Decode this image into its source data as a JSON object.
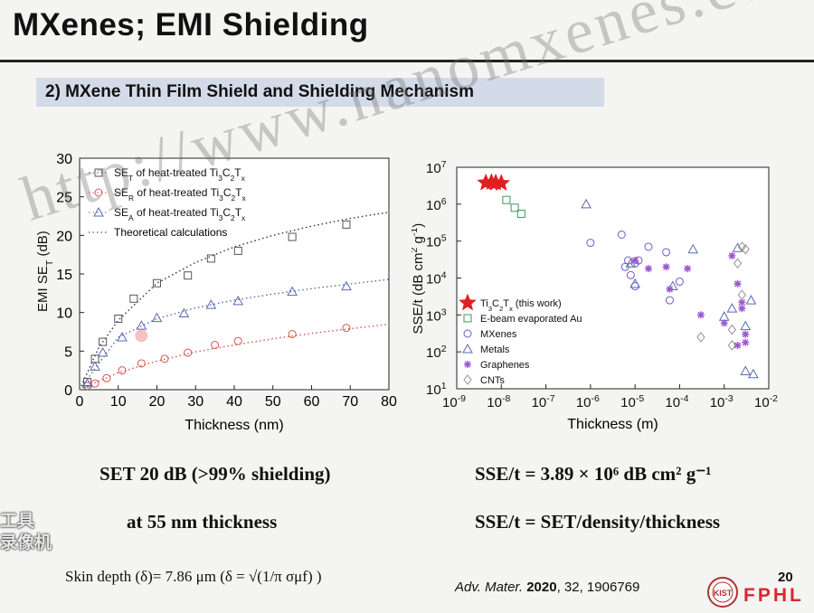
{
  "header": {
    "title": "MXenes; EMI Shielding",
    "subtitle": "2) MXene Thin Film Shield and Shielding Mechanism"
  },
  "watermark": "http://www.nanomxenes.com",
  "recorder_overlay": [
    "工具",
    "录像机"
  ],
  "statements": {
    "left_1": "SET 20 dB (>99% shielding)",
    "left_2": "at 55 nm thickness",
    "right_1": "SSE/t = 3.89 × 10⁶ dB cm² g⁻¹",
    "right_2": "SSE/t = SET/density/thickness",
    "skin_depth": "Skin depth (δ)= 7.86 μm  (δ = √(1/π σμf) )"
  },
  "footer": {
    "citation_journal": "Adv. Mater.",
    "citation_year": "2020",
    "citation_rest": ", 32, 1906769",
    "page_number": "20",
    "logo_text": "FPHL",
    "seal_text": "KIST"
  },
  "chart_data": [
    {
      "type": "scatter",
      "xlabel": "Thickness (nm)",
      "ylabel": "EMI SET (dB)",
      "xlim": [
        0,
        80
      ],
      "ylim": [
        0,
        30
      ],
      "xticks": [
        "0",
        "10",
        "20",
        "30",
        "40",
        "50",
        "60",
        "70",
        "80"
      ],
      "yticks": [
        "0",
        "5",
        "10",
        "15",
        "20",
        "25",
        "30"
      ],
      "legend_position": "top-left",
      "series": [
        {
          "name": "SET of heat-treated Ti3C2Tx",
          "marker": "square",
          "color": "#555555",
          "x": [
            2,
            4,
            6,
            10,
            14,
            20,
            28,
            34,
            41,
            55,
            69
          ],
          "y": [
            1,
            4,
            6.2,
            9.2,
            11.8,
            13.8,
            14.8,
            17,
            18,
            19.8,
            21.4
          ]
        },
        {
          "name": "SER of heat-treated Ti3C2Tx",
          "marker": "circle",
          "color": "#d9534f",
          "x": [
            2,
            4,
            7,
            11,
            16,
            22,
            28,
            35,
            41,
            55,
            69
          ],
          "y": [
            0.5,
            0.8,
            1.5,
            2.5,
            3.4,
            4,
            4.8,
            5.8,
            6.3,
            7.2,
            8
          ]
        },
        {
          "name": "SEA of heat-treated Ti3C2Tx",
          "marker": "triangle",
          "color": "#5b6ab0",
          "x": [
            2,
            4,
            6,
            11,
            16,
            20,
            27,
            34,
            41,
            55,
            69
          ],
          "y": [
            0.8,
            3,
            4.8,
            6.8,
            8.3,
            9.3,
            9.9,
            11,
            11.5,
            12.7,
            13.4
          ]
        }
      ],
      "curves": [
        {
          "name": "Theoretical calculations",
          "color": "#333333",
          "x": [
            0,
            5,
            10,
            20,
            30,
            40,
            50,
            60,
            70,
            80
          ],
          "y": [
            0,
            5.5,
            9,
            13.8,
            16.5,
            18.5,
            20,
            21.2,
            22.2,
            23
          ]
        },
        {
          "name": "",
          "color": "#d9534f",
          "x": [
            0,
            10,
            20,
            30,
            40,
            50,
            60,
            70,
            80
          ],
          "y": [
            0,
            2.2,
            3.7,
            4.9,
            5.8,
            6.6,
            7.3,
            7.9,
            8.5
          ]
        },
        {
          "name": "",
          "color": "#5b6ab0",
          "x": [
            0,
            10,
            20,
            30,
            40,
            50,
            60,
            70,
            80
          ],
          "y": [
            0,
            6.8,
            9.2,
            10.6,
            11.6,
            12.4,
            13.1,
            13.7,
            14.3
          ]
        }
      ],
      "highlight": {
        "x": 16,
        "y": 7
      }
    },
    {
      "type": "scatter",
      "xlabel": "Thickness (m)",
      "ylabel": "SSE/t (dB cm2 g-1)",
      "xscale": "log",
      "yscale": "log",
      "xlim": [
        1e-09,
        0.01
      ],
      "ylim": [
        10,
        10000000.0
      ],
      "xticks": [
        "10-9",
        "10-8",
        "10-7",
        "10-6",
        "10-5",
        "10-4",
        "10-3",
        "10-2"
      ],
      "yticks": [
        "101",
        "102",
        "103",
        "104",
        "105",
        "106",
        "107"
      ],
      "legend_position": "bottom-left",
      "series": [
        {
          "name": "Ti3C2Tx (this work)",
          "marker": "star",
          "color": "#e02020",
          "x": [
            4.5e-09,
            6e-09,
            7.5e-09,
            1e-08
          ],
          "y": [
            3800000.0,
            3900000.0,
            3800000.0,
            3700000.0
          ]
        },
        {
          "name": "E-beam evaporated Au",
          "marker": "square",
          "color": "#3a9a63",
          "x": [
            1.3e-08,
            2e-08,
            2.8e-08
          ],
          "y": [
            1300000.0,
            800000.0,
            550000.0
          ]
        },
        {
          "name": "MXenes",
          "marker": "circle",
          "color": "#6a5acd",
          "x": [
            1e-06,
            5e-06,
            7e-06,
            1e-05,
            6e-06,
            2e-05,
            1e-05,
            5e-05,
            6e-05,
            0.0001,
            8e-06,
            1.2e-05
          ],
          "y": [
            90000.0,
            150000.0,
            30000.0,
            25000.0,
            20000.0,
            70000.0,
            6000.0,
            50000.0,
            2500.0,
            8000.0,
            12000.0,
            30000.0
          ]
        },
        {
          "name": "Metals",
          "marker": "triangle",
          "color": "#5b6ab0",
          "x": [
            8e-07,
            8e-06,
            1e-05,
            7e-05,
            0.0002,
            0.004,
            0.0045,
            0.001,
            0.002,
            0.003,
            0.003,
            0.0015
          ],
          "y": [
            1000000.0,
            25000.0,
            7000.0,
            6000.0,
            60000.0,
            2500.0,
            25,
            900,
            65000.0,
            500,
            30,
            1500.0
          ]
        },
        {
          "name": "Graphenes",
          "marker": "asterisk",
          "color": "#9b59d0",
          "x": [
            1e-05,
            2e-05,
            5e-05,
            6e-05,
            0.00015,
            0.0003,
            0.001,
            0.0015,
            0.002,
            0.0025,
            0.003,
            0.002,
            0.003,
            0.0025
          ],
          "y": [
            30000.0,
            18000.0,
            20000.0,
            5000.0,
            18000.0,
            1000.0,
            600,
            40000.0,
            7000.0,
            1500.0,
            300,
            150,
            180,
            2200.0
          ]
        },
        {
          "name": "CNTs",
          "marker": "diamond",
          "color": "#9a8f8f",
          "x": [
            0.0003,
            0.0015,
            0.0025,
            0.003,
            0.002,
            0.0025,
            0.0015
          ],
          "y": [
            250,
            150,
            70000.0,
            60000.0,
            25000.0,
            3500.0,
            400
          ]
        }
      ]
    }
  ]
}
